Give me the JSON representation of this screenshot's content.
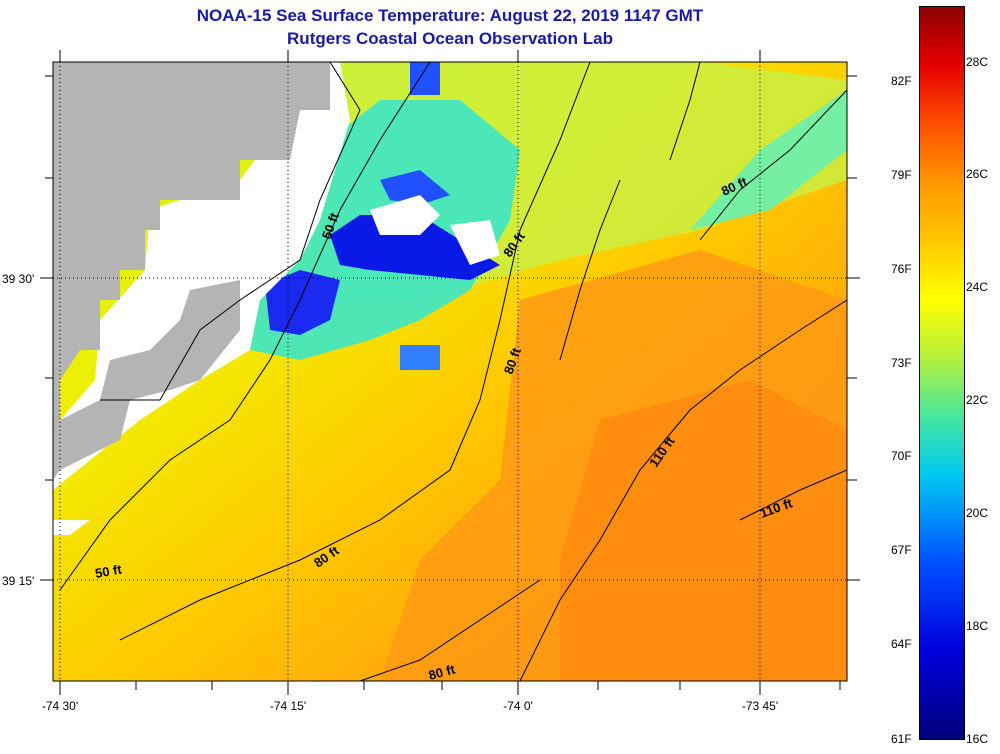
{
  "title": {
    "line1": "NOAA-15 Sea Surface Temperature:  August 22, 2019 1147 GMT",
    "line2": "Rutgers Coastal Ocean Observation Lab"
  },
  "axes": {
    "lon_labels": [
      "-74 30'",
      "-74 15'",
      "-74 0'",
      "-73 45'"
    ],
    "lat_labels": [
      "39 30'",
      "39 15'"
    ]
  },
  "contour_labels": [
    "50 ft",
    "80 ft",
    "80 ft",
    "80 ft",
    "110 ft",
    "110 ft",
    "80 ft",
    "50 ft",
    "80 ft"
  ],
  "colorbar": {
    "fahrenheit": [
      "82F",
      "79F",
      "76F",
      "73F",
      "70F",
      "67F",
      "64F",
      "61F"
    ],
    "celsius": [
      "28C",
      "26C",
      "24C",
      "22C",
      "20C",
      "18C",
      "16C"
    ]
  },
  "colors": {
    "title": "#1a1aa8",
    "land": "#b4b4b4",
    "cloud_mask": "#ffffff"
  }
}
